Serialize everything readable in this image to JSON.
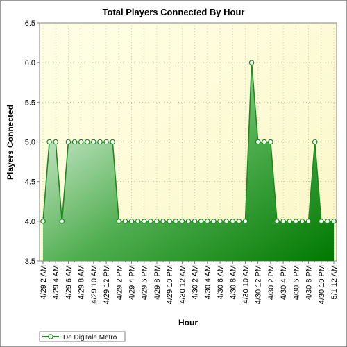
{
  "chart_data": {
    "type": "area",
    "title": "Total Players Connected By Hour",
    "xlabel": "Hour",
    "ylabel": "Players Connected",
    "ylim": [
      3.5,
      6.5
    ],
    "y_ticks": [
      "3.5",
      "4.0",
      "4.5",
      "5.0",
      "5.5",
      "6.0",
      "6.5"
    ],
    "x_tick_labels": [
      "4/29 2 AM",
      "4/29 4 AM",
      "4/29 6 AM",
      "4/29 8 AM",
      "4/29 10 AM",
      "4/29 12 PM",
      "4/29 2 PM",
      "4/29 4 PM",
      "4/29 6 PM",
      "4/29 8 PM",
      "4/29 10 PM",
      "4/30 12 AM",
      "4/30 2 AM",
      "4/30 4 AM",
      "4/30 6 AM",
      "4/30 8 AM",
      "4/30 10 AM",
      "4/30 12 PM",
      "4/30 2 PM",
      "4/30 4 PM",
      "4/30 6 PM",
      "4/30 8 PM",
      "4/30 10 PM",
      "5/1 12 AM"
    ],
    "grid": true,
    "legend_position": "bottom-left",
    "series": [
      {
        "name": "De Digitale Metro",
        "color": "#1e8a1e",
        "values": [
          4,
          5,
          5,
          4,
          5,
          5,
          5,
          5,
          5,
          5,
          5,
          5,
          4,
          4,
          4,
          4,
          4,
          4,
          4,
          4,
          4,
          4,
          4,
          4,
          4,
          4,
          4,
          4,
          4,
          4,
          4,
          4,
          4,
          6,
          5,
          5,
          5,
          4,
          4,
          4,
          4,
          4,
          4,
          5,
          4,
          4,
          4
        ]
      }
    ]
  }
}
